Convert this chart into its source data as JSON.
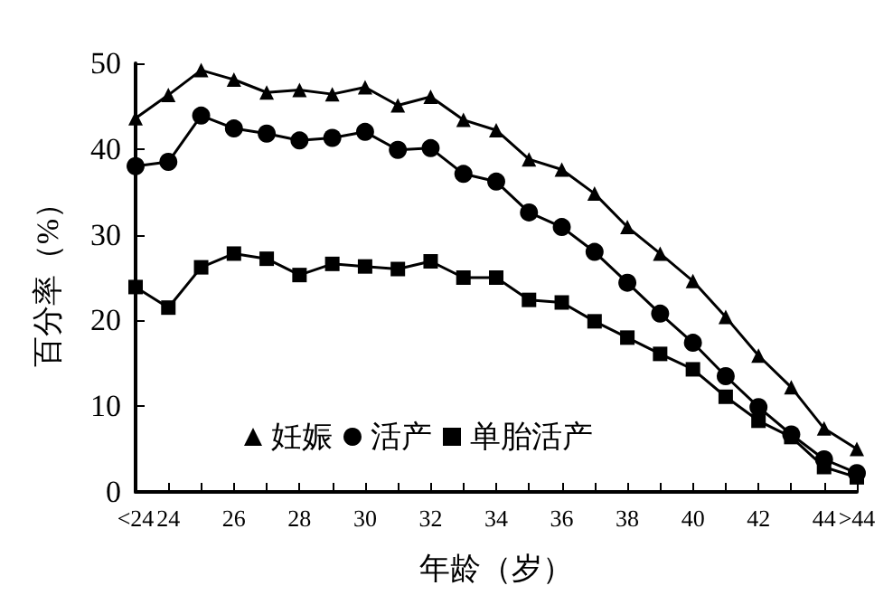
{
  "chart_data": {
    "type": "line",
    "xlabel": "年龄（岁）",
    "ylabel": "百分率（%）",
    "categories": [
      "<24",
      "24",
      null,
      "26",
      null,
      "28",
      null,
      "30",
      null,
      "32",
      null,
      "34",
      null,
      "36",
      null,
      "38",
      null,
      "40",
      null,
      "42",
      null,
      "44",
      ">44"
    ],
    "ylim": [
      0,
      50
    ],
    "yticks": [
      0,
      10,
      20,
      30,
      40,
      50
    ],
    "grid": false,
    "legend": "bottom left",
    "line_style": "solid",
    "series": [
      {
        "name": "妊娠",
        "color": "#000000",
        "marker": "triangle",
        "values": [
          43.6,
          46.3,
          49.2,
          48.1,
          46.6,
          46.9,
          46.4,
          47.2,
          45.1,
          46.1,
          43.4,
          42.2,
          38.8,
          37.6,
          34.8,
          30.9,
          27.8,
          24.6,
          20.4,
          15.9,
          12.2,
          7.4,
          5.0
        ]
      },
      {
        "name": "活产",
        "color": "#000000",
        "marker": "circle",
        "values": [
          38.0,
          38.5,
          43.9,
          42.4,
          41.8,
          41.0,
          41.3,
          42.0,
          39.9,
          40.1,
          37.1,
          36.2,
          32.6,
          30.9,
          28.0,
          24.4,
          20.8,
          17.4,
          13.5,
          9.9,
          6.7,
          3.8,
          2.2
        ]
      },
      {
        "name": "单胎活产",
        "color": "#000000",
        "marker": "square",
        "values": [
          23.9,
          21.5,
          26.2,
          27.8,
          27.2,
          25.3,
          26.6,
          26.3,
          26.0,
          26.9,
          25.0,
          25.0,
          22.4,
          22.1,
          19.9,
          18.0,
          16.1,
          14.3,
          11.1,
          8.3,
          6.4,
          2.9,
          1.7
        ]
      }
    ]
  }
}
